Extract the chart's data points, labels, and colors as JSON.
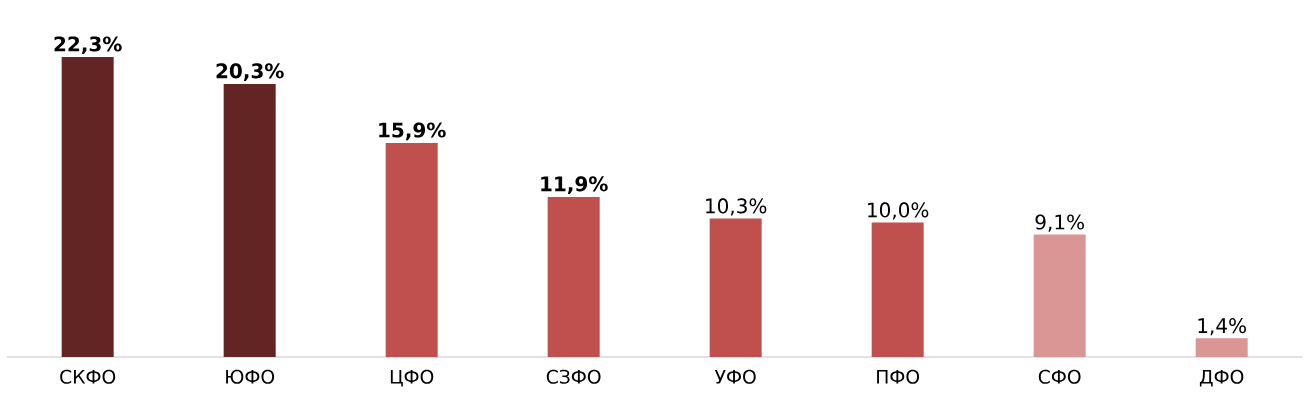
{
  "chart_data": {
    "type": "bar",
    "categories": [
      "СКФО",
      "ЮФО",
      "ЦФО",
      "СЗФО",
      "УФО",
      "ПФО",
      "СФО",
      "ДФО"
    ],
    "values": [
      22.3,
      20.3,
      15.9,
      11.9,
      10.3,
      10.0,
      9.1,
      1.4
    ],
    "colors": [
      "#632523",
      "#632523",
      "#c0504d",
      "#c0504d",
      "#c0504d",
      "#c0504d",
      "#d99694",
      "#d99694"
    ],
    "value_labels": [
      "**22,3%**",
      "**20,3%**",
      "**15,9%**",
      "**11,9%**",
      "10,3%",
      "10,0%",
      "9,1%",
      "1,4%"
    ]
  }
}
